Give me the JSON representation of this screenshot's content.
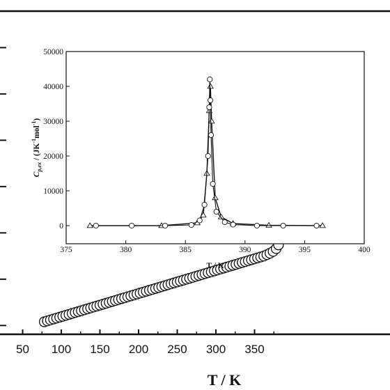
{
  "chart_data": [
    {
      "id": "main",
      "type": "scatter",
      "xlabel": "T / K",
      "ylabel": "",
      "xlim": [
        50,
        382
      ],
      "ylim": [
        -0.25,
        6.0
      ],
      "xticks": [
        50,
        100,
        150,
        200,
        250,
        300,
        350
      ],
      "xtick_labels": [
        "50",
        "100",
        "150",
        "200",
        "250",
        "300",
        "350"
      ],
      "yticks": [
        0,
        1,
        2,
        3,
        4,
        5,
        6
      ],
      "marker": "open-circle",
      "series": [
        {
          "x": [
            78,
            82,
            86,
            90,
            94,
            98,
            102,
            106,
            110,
            114,
            118,
            122,
            126,
            130,
            134,
            138,
            142,
            146,
            150,
            154,
            158,
            162,
            166,
            170,
            174,
            178,
            182,
            186,
            190,
            194,
            198,
            202,
            206,
            210,
            214,
            218,
            222,
            226,
            230,
            234,
            238,
            242,
            246,
            250,
            254,
            258,
            262,
            266,
            270,
            274,
            278,
            282,
            286,
            290,
            294,
            298,
            302,
            306,
            310,
            314,
            318,
            322,
            326,
            330,
            334,
            338,
            342,
            346,
            350,
            354,
            358,
            362,
            366,
            370,
            374,
            378,
            381
          ],
          "y": [
            0.08,
            0.1,
            0.12,
            0.14,
            0.16,
            0.18,
            0.2,
            0.22,
            0.24,
            0.26,
            0.28,
            0.3,
            0.32,
            0.34,
            0.36,
            0.38,
            0.4,
            0.42,
            0.44,
            0.46,
            0.48,
            0.5,
            0.52,
            0.54,
            0.56,
            0.58,
            0.6,
            0.62,
            0.64,
            0.66,
            0.68,
            0.7,
            0.72,
            0.74,
            0.76,
            0.78,
            0.8,
            0.82,
            0.84,
            0.86,
            0.88,
            0.9,
            0.92,
            0.94,
            0.96,
            0.98,
            1.0,
            1.02,
            1.04,
            1.06,
            1.08,
            1.1,
            1.12,
            1.14,
            1.16,
            1.18,
            1.2,
            1.22,
            1.24,
            1.26,
            1.28,
            1.3,
            1.32,
            1.34,
            1.36,
            1.38,
            1.4,
            1.42,
            1.44,
            1.46,
            1.48,
            1.5,
            1.53,
            1.56,
            1.6,
            1.66,
            1.74
          ]
        }
      ]
    },
    {
      "id": "inset",
      "type": "line",
      "xlabel": "T / K",
      "ylabel_main": "C",
      "ylabel_sub": "p,ex",
      "ylabel_rest": " / (JK",
      "ylabel_sup1": "-1",
      "ylabel_mid": "mol",
      "ylabel_sup2": "-1",
      "ylabel_end": ")",
      "xlim": [
        375,
        400
      ],
      "ylim": [
        -3000,
        50000
      ],
      "xticks": [
        375,
        380,
        385,
        390,
        395,
        400
      ],
      "xtick_labels": [
        "375",
        "380",
        "385",
        "390",
        "395",
        "400"
      ],
      "yticks": [
        0,
        10000,
        20000,
        30000,
        40000,
        50000
      ],
      "ytick_labels": [
        "0",
        "10000",
        "20000",
        "30000",
        "40000",
        "50000"
      ],
      "series": [
        {
          "marker": "open-triangle",
          "x": [
            377.0,
            383.0,
            386.0,
            386.5,
            386.8,
            387.0,
            387.1,
            387.2,
            387.5,
            388.0,
            389.0,
            392.0,
            396.5
          ],
          "y": [
            0,
            0,
            800,
            3000,
            15000,
            33000,
            40000,
            30000,
            8000,
            2500,
            600,
            100,
            0
          ]
        },
        {
          "marker": "open-circle",
          "x": [
            377.5,
            380.5,
            383.3,
            385.5,
            386.2,
            386.6,
            386.9,
            387.0,
            387.05,
            387.1,
            387.15,
            387.3,
            387.6,
            388.3,
            389.0,
            391.0,
            393.2,
            396.0
          ],
          "y": [
            0,
            0,
            0,
            200,
            1500,
            6000,
            20000,
            34000,
            42000,
            36000,
            26000,
            12000,
            4000,
            1000,
            300,
            0,
            0,
            0
          ]
        }
      ]
    }
  ]
}
